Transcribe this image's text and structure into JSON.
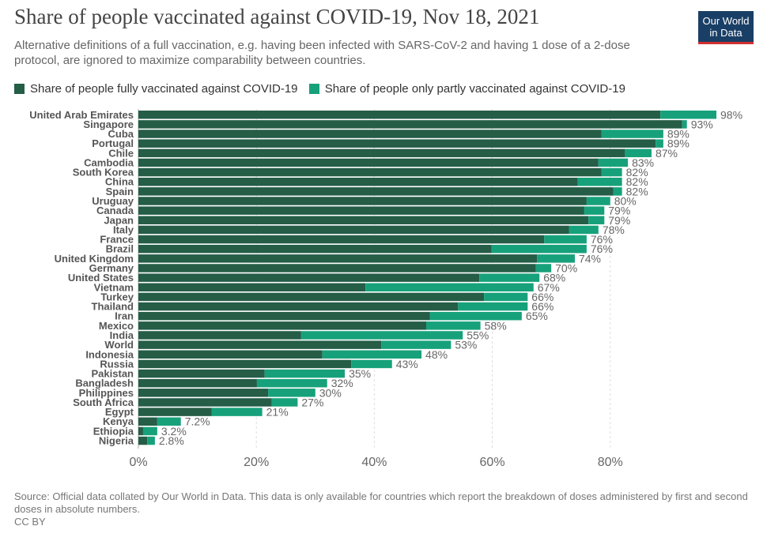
{
  "header": {
    "title": "Share of people vaccinated against COVID-19, Nov 18, 2021",
    "subtitle": "Alternative definitions of a full vaccination, e.g. having been infected with SARS-CoV-2 and having 1 dose of a 2-dose protocol, are ignored to maximize comparability between countries.",
    "logo_line1": "Our World",
    "logo_line2": "in Data"
  },
  "legend": {
    "fully_label": "Share of people fully vaccinated against COVID-19",
    "partly_label": "Share of people only partly vaccinated against COVID-19"
  },
  "colors": {
    "fully": "#255d47",
    "partly": "#17a17b"
  },
  "footer": {
    "source": "Source: Official data collated by Our World in Data. This data is only available for countries which report the breakdown of doses administered by first and second doses in absolute numbers.",
    "license": "CC BY"
  },
  "chart_data": {
    "type": "bar",
    "orientation": "horizontal",
    "stacked": true,
    "xlim": [
      0,
      98
    ],
    "x_ticks": [
      0,
      20,
      40,
      60,
      80
    ],
    "x_tick_labels": [
      "0%",
      "20%",
      "40%",
      "60%",
      "80%"
    ],
    "grid": "vertical dashed",
    "legend_position": "top",
    "categories": [
      "United Arab Emirates",
      "Singapore",
      "Cuba",
      "Portugal",
      "Chile",
      "Cambodia",
      "South Korea",
      "China",
      "Spain",
      "Uruguay",
      "Canada",
      "Japan",
      "Italy",
      "France",
      "Brazil",
      "United Kingdom",
      "Germany",
      "United States",
      "Vietnam",
      "Turkey",
      "Thailand",
      "Iran",
      "Mexico",
      "India",
      "World",
      "Indonesia",
      "Russia",
      "Pakistan",
      "Bangladesh",
      "Philippines",
      "South Africa",
      "Egypt",
      "Kenya",
      "Ethiopia",
      "Nigeria"
    ],
    "series": [
      {
        "name": "Share of people fully vaccinated against COVID-19",
        "values": [
          88.5,
          92.2,
          78.5,
          87.7,
          82.5,
          78.0,
          78.5,
          74.5,
          80.5,
          76.0,
          75.6,
          76.3,
          73.0,
          68.8,
          59.9,
          67.6,
          67.4,
          57.8,
          38.5,
          58.6,
          54.2,
          49.4,
          48.8,
          27.6,
          41.2,
          31.2,
          36.1,
          21.4,
          20.1,
          22.0,
          22.6,
          12.4,
          3.2,
          0.8,
          1.5
        ]
      },
      {
        "name": "Share of people only partly vaccinated against COVID-19",
        "values": [
          9.5,
          0.8,
          10.5,
          1.3,
          4.5,
          5.0,
          3.5,
          7.5,
          1.5,
          4.0,
          3.4,
          2.7,
          5.0,
          7.2,
          16.1,
          6.4,
          2.6,
          10.2,
          28.5,
          7.4,
          11.8,
          15.6,
          9.2,
          27.4,
          11.8,
          16.8,
          6.9,
          13.6,
          11.9,
          8.0,
          4.4,
          8.6,
          4.0,
          2.4,
          1.3
        ]
      }
    ],
    "total_labels": [
      "98%",
      "93%",
      "89%",
      "89%",
      "87%",
      "83%",
      "82%",
      "82%",
      "82%",
      "80%",
      "79%",
      "79%",
      "78%",
      "76%",
      "76%",
      "74%",
      "70%",
      "68%",
      "67%",
      "66%",
      "66%",
      "65%",
      "58%",
      "55%",
      "53%",
      "48%",
      "43%",
      "35%",
      "32%",
      "30%",
      "27%",
      "21%",
      "7.2%",
      "3.2%",
      "2.8%"
    ]
  }
}
